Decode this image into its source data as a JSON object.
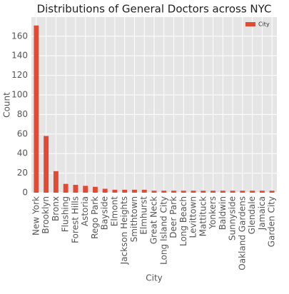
{
  "chart_data": {
    "type": "bar",
    "title": "Distributions of General Doctors across NYC",
    "x_label": "City",
    "y_label": "Count",
    "categories": [
      "New York",
      "Brooklyn",
      "Bronx",
      "Flushing",
      "Forest Hills",
      "Astoria",
      "Rego Park",
      "Bayside",
      "Elmont",
      "Jackson Heights",
      "Smithtown",
      "Elmhurst",
      "Great Neck",
      "Long Island City",
      "Deer Park",
      "Long Beach",
      "Levittown",
      "Mattituck",
      "Yonkers",
      "Baldwin",
      "Sunnyside",
      "Oakland Gardens",
      "Glendale",
      "Jamaica",
      "Garden City"
    ],
    "series": [
      {
        "name": "City",
        "color": "#e24a33",
        "values": [
          171,
          58,
          22,
          9,
          8,
          7,
          6,
          4,
          3,
          3,
          3,
          3,
          2,
          2,
          2,
          2,
          2,
          2,
          2,
          2,
          2,
          2,
          2,
          2,
          2
        ]
      }
    ],
    "ylim": [
      0,
      179.55
    ],
    "yticks": [
      0,
      20,
      40,
      60,
      80,
      100,
      120,
      140,
      160
    ],
    "grid": true,
    "legend": "upper right"
  }
}
